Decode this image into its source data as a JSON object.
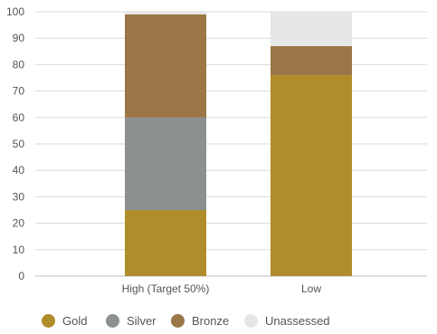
{
  "chart_data": {
    "type": "bar",
    "stacked": true,
    "categories": [
      "High (Target 50%)",
      "Low"
    ],
    "series": [
      {
        "name": "Gold",
        "color": "#B08D2B",
        "values": [
          25,
          76
        ]
      },
      {
        "name": "Silver",
        "color": "#8C9091",
        "values": [
          35,
          0
        ]
      },
      {
        "name": "Bronze",
        "color": "#9B7647",
        "values": [
          39,
          11
        ]
      },
      {
        "name": "Unassessed",
        "color": "#E6E6E6",
        "values": [
          1,
          13
        ]
      }
    ],
    "ylim": [
      0,
      100
    ],
    "yticks": [
      "0",
      "10",
      "20",
      "30",
      "40",
      "50",
      "60",
      "70",
      "80",
      "90",
      "100"
    ],
    "grid": "horizontal",
    "legend_position": "bottom"
  }
}
